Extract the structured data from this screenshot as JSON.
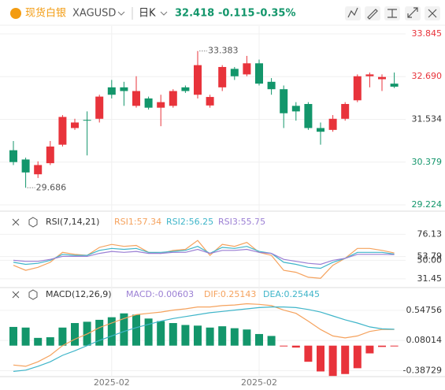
{
  "header": {
    "name": "现货白银",
    "symbol": "XAGUSD",
    "period": "日K",
    "price": "32.418",
    "change": "-0.115",
    "change_pct": "-0.35%"
  },
  "chart_data": [
    {
      "type": "candlestick",
      "open": [
        30.7,
        30.45,
        30.05,
        30.35,
        30.85,
        31.3,
        31.52,
        31.55,
        32.4,
        32.4,
        31.9,
        32.1,
        31.85,
        31.9,
        32.4,
        32.2,
        31.91,
        32.4,
        32.9,
        32.75,
        33.05,
        32.55,
        32.35,
        31.9,
        31.95,
        31.3,
        31.25,
        31.55,
        32.05,
        32.7,
        32.62,
        32.5
      ],
      "high": [
        30.95,
        30.5,
        30.4,
        30.95,
        31.65,
        31.55,
        31.75,
        32.2,
        32.6,
        32.55,
        32.7,
        32.15,
        32.2,
        32.35,
        32.45,
        33.383,
        32.2,
        33.0,
        32.95,
        33.25,
        33.15,
        32.65,
        32.45,
        32.0,
        32.0,
        31.45,
        31.65,
        32.0,
        32.75,
        32.8,
        32.75,
        32.8
      ],
      "low": [
        30.3,
        29.686,
        29.95,
        30.3,
        30.8,
        31.25,
        30.56,
        31.45,
        32.1,
        31.9,
        31.85,
        31.8,
        31.35,
        31.85,
        32.25,
        32.1,
        31.85,
        32.3,
        32.6,
        32.7,
        32.45,
        32.2,
        31.3,
        31.5,
        31.25,
        30.85,
        31.2,
        31.5,
        32.0,
        32.4,
        32.3,
        32.38
      ],
      "close": [
        30.38,
        30.1,
        30.3,
        30.8,
        31.6,
        31.45,
        31.5,
        32.15,
        32.2,
        32.3,
        32.3,
        31.85,
        32.0,
        32.3,
        32.3,
        33.0,
        32.14,
        32.95,
        32.7,
        33.05,
        32.5,
        32.35,
        31.7,
        31.75,
        31.3,
        31.2,
        31.55,
        31.95,
        32.7,
        32.75,
        32.68,
        32.418
      ],
      "up_color": "#e8333b",
      "down_color": "#13966b",
      "annotations": [
        33.383,
        29.686
      ],
      "ylim": [
        29.224,
        33.845
      ],
      "yticks": [
        33.845,
        {
          "value": 32.69,
          "label": "32.690"
        },
        31.534,
        30.379,
        29.224
      ],
      "ytick_colors": [
        "#e8333b",
        "#e8333b",
        "#333333",
        "#13966b",
        "#13966b"
      ],
      "grid": true
    },
    {
      "type": "line",
      "title": "RSI(7,14,21)",
      "series": [
        {
          "name": "RSI1:57.34",
          "color": "#f5a25d",
          "values": [
            45,
            40,
            43,
            48,
            58,
            56,
            55,
            63,
            66,
            64,
            65,
            58,
            57,
            60,
            61,
            70,
            55,
            66,
            64,
            68,
            58,
            55,
            40,
            38,
            33,
            32,
            45,
            52,
            62,
            62,
            60,
            57.34
          ]
        },
        {
          "name": "RSI2:56.25",
          "color": "#3fb5c9",
          "values": [
            48,
            46,
            47,
            50,
            56,
            55,
            55,
            60,
            62,
            61,
            62,
            58,
            58,
            59,
            60,
            64,
            57,
            63,
            62,
            64,
            59,
            57,
            48,
            46,
            43,
            42,
            48,
            52,
            58,
            58,
            58,
            56.25
          ]
        },
        {
          "name": "RSI3:55.75",
          "color": "#9b7fd4",
          "values": [
            50,
            49,
            49,
            51,
            54,
            54,
            54,
            57,
            59,
            58,
            59,
            57,
            57,
            58,
            58,
            61,
            57,
            60,
            60,
            61,
            58,
            57,
            51,
            49,
            47,
            46,
            50,
            52,
            56,
            56,
            56,
            55.75
          ]
        }
      ],
      "ylim": [
        25,
        82
      ],
      "yticks": [
        76.13,
        53.79,
        {
          "value": 50,
          "label": "50.00"
        },
        31.45
      ],
      "grid": true
    },
    {
      "type": "macd",
      "title": "MACD(12,26,9)",
      "categories": [
        null,
        null,
        null,
        null,
        null,
        null,
        null,
        null,
        "2025-02",
        null,
        null,
        null,
        null,
        null,
        null,
        null,
        null,
        null,
        null,
        null,
        "2025-02",
        null,
        null,
        null,
        null,
        null,
        null,
        null,
        null,
        null,
        null,
        null
      ],
      "histogram": {
        "name": "MACD:-0.00603",
        "color": "#9b7fd4",
        "up_color": "#13966b",
        "down_color": "#e8333b",
        "values": [
          0.29,
          0.28,
          0.12,
          0.13,
          0.28,
          0.35,
          0.37,
          0.4,
          0.44,
          0.5,
          0.48,
          0.42,
          0.38,
          0.35,
          0.32,
          0.31,
          0.28,
          0.3,
          0.27,
          0.25,
          0.18,
          0.15,
          -0.01,
          -0.03,
          -0.25,
          -0.4,
          -0.47,
          -0.44,
          -0.35,
          -0.12,
          -0.02,
          -0.00603
        ]
      },
      "series": [
        {
          "name": "DIF:0.25143",
          "color": "#f5a25d",
          "values": [
            -0.3,
            -0.32,
            -0.25,
            -0.15,
            0.0,
            0.1,
            0.18,
            0.28,
            0.35,
            0.42,
            0.48,
            0.5,
            0.52,
            0.55,
            0.57,
            0.6,
            0.6,
            0.62,
            0.63,
            0.65,
            0.64,
            0.62,
            0.55,
            0.5,
            0.38,
            0.25,
            0.15,
            0.12,
            0.15,
            0.22,
            0.25,
            0.25143
          ]
        },
        {
          "name": "DEA:0.25445",
          "color": "#3fb5c9",
          "values": [
            -0.4,
            -0.38,
            -0.32,
            -0.25,
            -0.15,
            -0.08,
            0.0,
            0.08,
            0.15,
            0.22,
            0.28,
            0.33,
            0.38,
            0.42,
            0.45,
            0.48,
            0.51,
            0.53,
            0.55,
            0.57,
            0.59,
            0.6,
            0.6,
            0.59,
            0.56,
            0.52,
            0.46,
            0.4,
            0.35,
            0.29,
            0.26,
            0.25445
          ]
        }
      ],
      "ylim": [
        -0.48,
        0.68
      ],
      "yticks": [
        0.54756,
        0.08014,
        -0.38729
      ],
      "grid": true
    }
  ]
}
